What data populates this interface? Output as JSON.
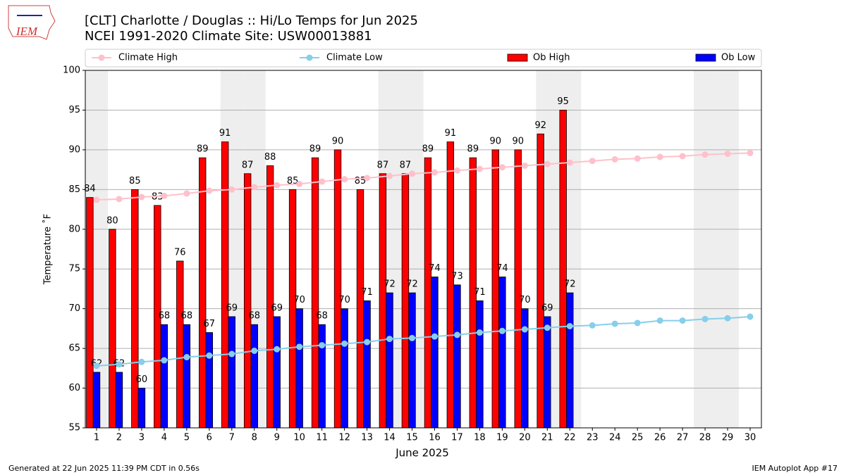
{
  "logo_text": "IEM",
  "footer_left": "Generated at 22 Jun 2025 11:39 PM CDT in 0.56s",
  "footer_right": "IEM Autoplot App #17",
  "chart_data": {
    "type": "bar",
    "title": "[CLT] Charlotte / Douglas :: Hi/Lo Temps for Jun 2025",
    "subtitle": "NCEI 1991-2020 Climate Site: USW00013881",
    "x_label": "June 2025",
    "y_label": "Temperature ˚F",
    "x": [
      1,
      2,
      3,
      4,
      5,
      6,
      7,
      8,
      9,
      10,
      11,
      12,
      13,
      14,
      15,
      16,
      17,
      18,
      19,
      20,
      21,
      22,
      23,
      24,
      25,
      26,
      27,
      28,
      29,
      30
    ],
    "xlim": [
      0.5,
      30.5
    ],
    "ylim": [
      55,
      100
    ],
    "yticks": [
      55,
      60,
      65,
      70,
      75,
      80,
      85,
      90,
      95,
      100
    ],
    "grid": true,
    "shaded_days": [
      1,
      7,
      8,
      14,
      15,
      21,
      22,
      28,
      29
    ],
    "series": [
      {
        "name": "Climate High",
        "type": "line",
        "color": "#ffc0cb",
        "values": [
          83.7,
          83.8,
          84.05,
          84.2,
          84.5,
          84.85,
          85.0,
          85.3,
          85.55,
          85.7,
          86.0,
          86.3,
          86.45,
          86.7,
          87.0,
          87.15,
          87.4,
          87.6,
          87.8,
          88.0,
          88.2,
          88.4,
          88.6,
          88.8,
          88.9,
          89.1,
          89.2,
          89.4,
          89.5,
          89.6
        ]
      },
      {
        "name": "Climate Low",
        "type": "line",
        "color": "#87ceeb",
        "values": [
          62.8,
          63.0,
          63.3,
          63.5,
          63.9,
          64.1,
          64.3,
          64.7,
          64.9,
          65.2,
          65.4,
          65.6,
          65.8,
          66.2,
          66.3,
          66.5,
          66.7,
          67.0,
          67.2,
          67.4,
          67.6,
          67.8,
          67.9,
          68.1,
          68.2,
          68.5,
          68.5,
          68.7,
          68.8,
          69.0
        ]
      },
      {
        "name": "Ob High",
        "type": "bar",
        "color": "#ff0000",
        "values": [
          84,
          80,
          85,
          83,
          76,
          89,
          91,
          87,
          88,
          85,
          89,
          90,
          85,
          87,
          87,
          89,
          91,
          89,
          90,
          90,
          92,
          95,
          null,
          null,
          null,
          null,
          null,
          null,
          null,
          null
        ]
      },
      {
        "name": "Ob Low",
        "type": "bar",
        "color": "#0000ff",
        "values": [
          62,
          62,
          60,
          68,
          68,
          67,
          69,
          68,
          69,
          70,
          68,
          70,
          71,
          72,
          72,
          74,
          73,
          71,
          74,
          70,
          69,
          72,
          null,
          null,
          null,
          null,
          null,
          null,
          null,
          null
        ]
      }
    ]
  }
}
